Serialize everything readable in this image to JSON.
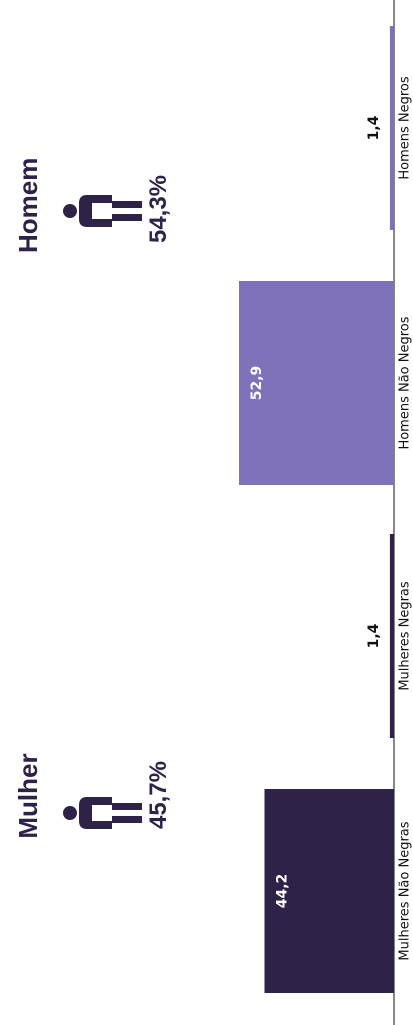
{
  "colors": {
    "dark": "#2e2249",
    "light": "#7f72ba",
    "title_text": "#2e2249",
    "axis": "#111111"
  },
  "groups": [
    {
      "title": "Mulher",
      "percent": "45,7%",
      "icon": "person-icon",
      "color": "#2e2249"
    },
    {
      "title": "Homem",
      "percent": "54,3%",
      "icon": "person-icon",
      "color": "#2e2249"
    }
  ],
  "chart_data": {
    "type": "bar",
    "orientation": "rotated -90deg (bars grow leftward from baseline)",
    "categories": [
      "Mulheres Não Negras",
      "Mulheres Negras",
      "Homens Não Negros",
      "Homens Negros"
    ],
    "values": [
      44.2,
      1.4,
      52.9,
      1.4
    ],
    "value_labels": [
      "44,2",
      "1,4",
      "52,9",
      "1,4"
    ],
    "colors": [
      "#2e2249",
      "#2e2249",
      "#7f72ba",
      "#7f72ba"
    ],
    "ylim": [
      0,
      60
    ],
    "grid": false,
    "legend": "none"
  }
}
